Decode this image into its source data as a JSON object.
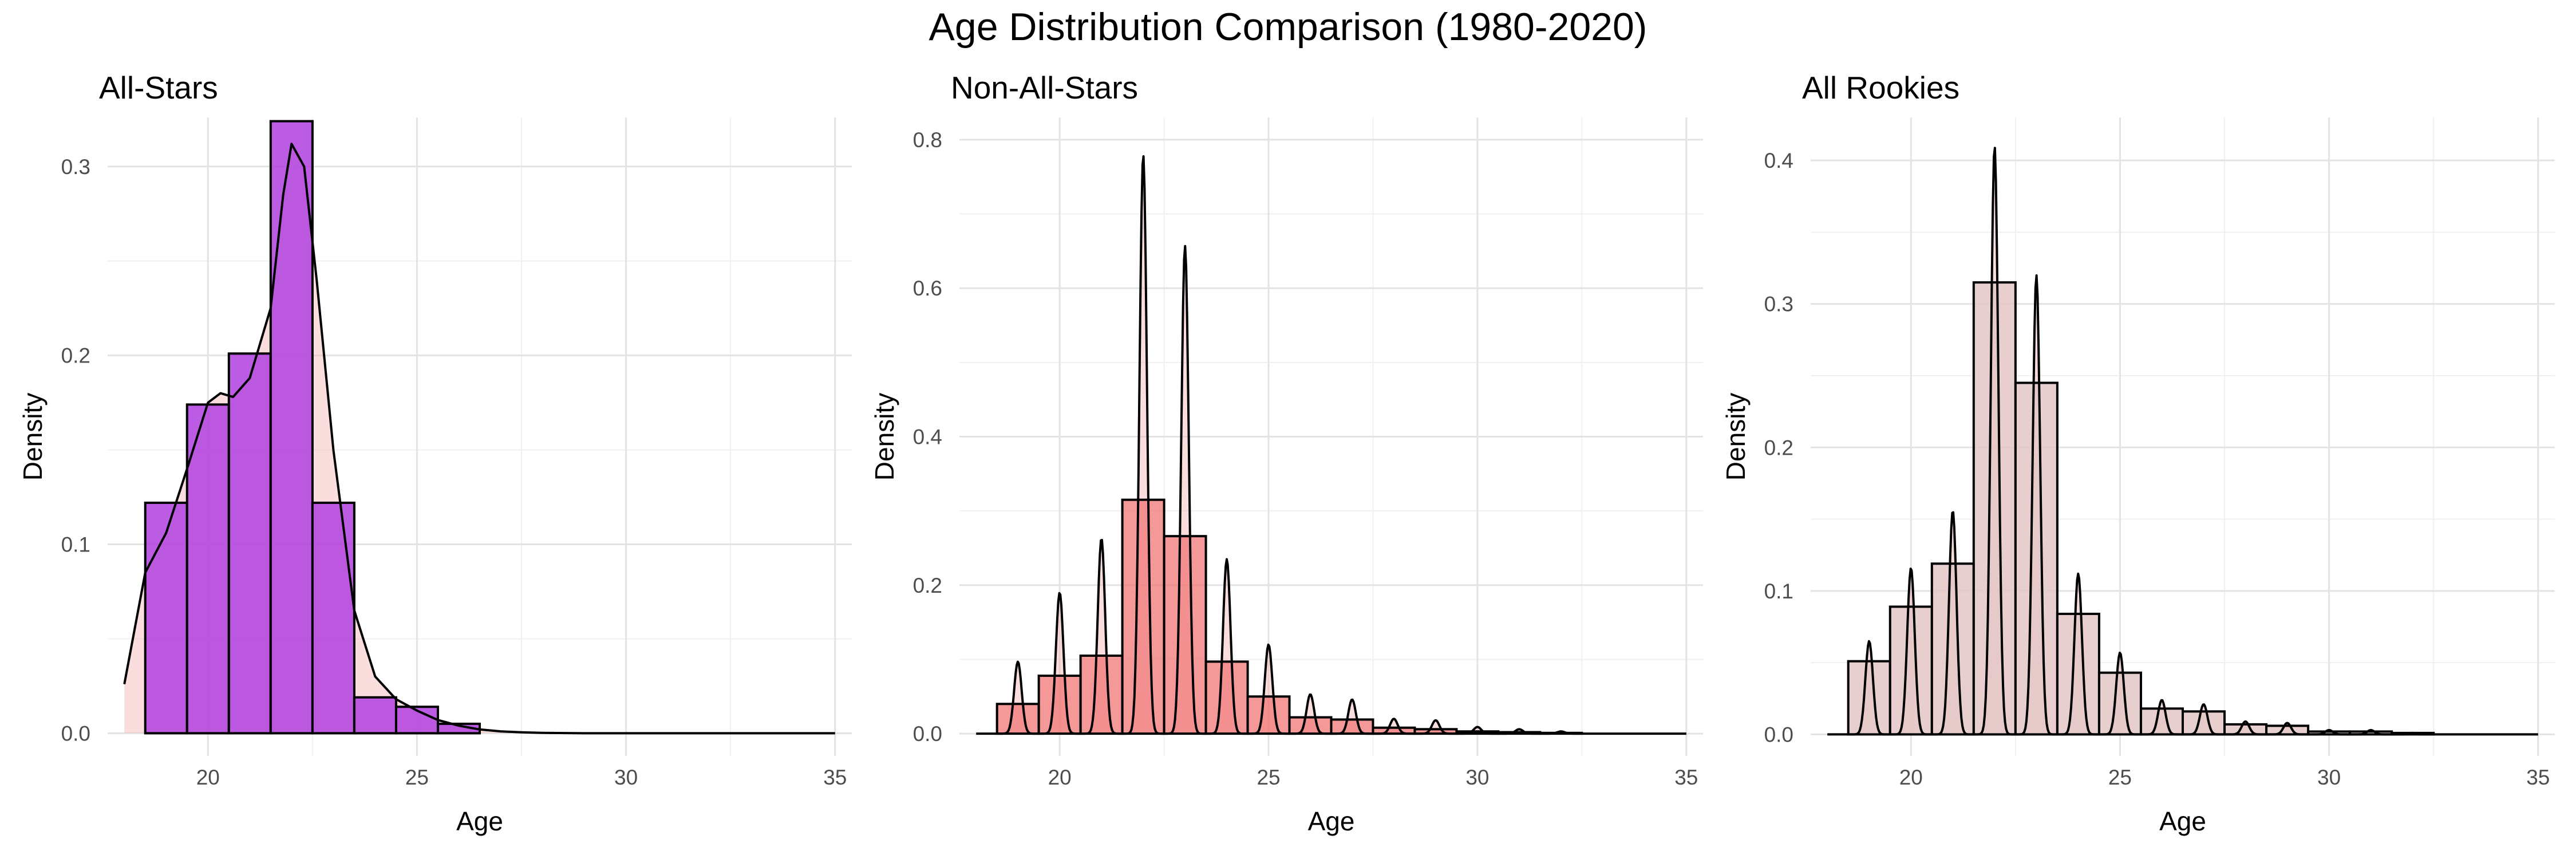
{
  "title": "Age Distribution Comparison (1980-2020)",
  "chart_data": [
    {
      "type": "bar",
      "title": "All-Stars",
      "xlabel": "Age",
      "ylabel": "Density",
      "xlim": [
        17.6,
        35.4
      ],
      "ylim": [
        -0.012,
        0.326
      ],
      "x_ticks": [
        20,
        25,
        30,
        35
      ],
      "y_ticks": [
        0.0,
        0.1,
        0.2,
        0.3
      ],
      "y_tick_labels": [
        "0.0",
        "0.1",
        "0.2",
        "0.3"
      ],
      "grid": true,
      "bar_fill": "#b040e0",
      "bar_alpha": 0.85,
      "density_fill": "#f4b6b6",
      "bins": [
        {
          "x0": 18.5,
          "x1": 19.5,
          "value": 0.122
        },
        {
          "x0": 19.5,
          "x1": 20.5,
          "value": 0.174
        },
        {
          "x0": 20.5,
          "x1": 21.5,
          "value": 0.201
        },
        {
          "x0": 21.5,
          "x1": 22.5,
          "value": 0.324
        },
        {
          "x0": 22.5,
          "x1": 23.5,
          "value": 0.122
        },
        {
          "x0": 23.5,
          "x1": 24.5,
          "value": 0.019
        },
        {
          "x0": 24.5,
          "x1": 25.5,
          "value": 0.014
        },
        {
          "x0": 25.5,
          "x1": 26.5,
          "value": 0.005
        }
      ],
      "density": {
        "x": [
          18.0,
          18.5,
          19.0,
          19.5,
          20.0,
          20.3,
          20.6,
          21.0,
          21.5,
          21.8,
          22.0,
          22.3,
          22.6,
          23.0,
          23.5,
          24.0,
          24.5,
          25.0,
          25.5,
          26.0,
          26.5,
          27.0,
          27.5,
          28.0,
          29.0,
          35.0
        ],
        "y": [
          0.026,
          0.085,
          0.106,
          0.14,
          0.175,
          0.18,
          0.178,
          0.188,
          0.225,
          0.285,
          0.312,
          0.3,
          0.24,
          0.15,
          0.065,
          0.03,
          0.018,
          0.012,
          0.007,
          0.004,
          0.002,
          0.001,
          0.0005,
          0.0002,
          0.0,
          0.0
        ]
      }
    },
    {
      "type": "bar",
      "title": "Non-All-Stars",
      "xlabel": "Age",
      "ylabel": "Density",
      "xlim": [
        17.6,
        35.4
      ],
      "ylim": [
        -0.03,
        0.83
      ],
      "x_ticks": [
        20,
        25,
        30,
        35
      ],
      "y_ticks": [
        0.0,
        0.2,
        0.4,
        0.6,
        0.8
      ],
      "y_tick_labels": [
        "0.0",
        "0.2",
        "0.4",
        "0.6",
        "0.8"
      ],
      "grid": true,
      "bar_fill": "#f07070",
      "bar_alpha": 0.72,
      "density_fill": "#f4b6b6",
      "bins": [
        {
          "x0": 18.5,
          "x1": 19.5,
          "value": 0.04
        },
        {
          "x0": 19.5,
          "x1": 20.5,
          "value": 0.078
        },
        {
          "x0": 20.5,
          "x1": 21.5,
          "value": 0.105
        },
        {
          "x0": 21.5,
          "x1": 22.5,
          "value": 0.315
        },
        {
          "x0": 22.5,
          "x1": 23.5,
          "value": 0.266
        },
        {
          "x0": 23.5,
          "x1": 24.5,
          "value": 0.097
        },
        {
          "x0": 24.5,
          "x1": 25.5,
          "value": 0.05
        },
        {
          "x0": 25.5,
          "x1": 26.5,
          "value": 0.022
        },
        {
          "x0": 26.5,
          "x1": 27.5,
          "value": 0.019
        },
        {
          "x0": 27.5,
          "x1": 28.5,
          "value": 0.008
        },
        {
          "x0": 28.5,
          "x1": 29.5,
          "value": 0.006
        },
        {
          "x0": 29.5,
          "x1": 30.5,
          "value": 0.003
        },
        {
          "x0": 30.5,
          "x1": 31.5,
          "value": 0.002
        },
        {
          "x0": 31.5,
          "x1": 32.5,
          "value": 0.001
        }
      ],
      "density_peaks": [
        {
          "x": 19,
          "y": 0.097
        },
        {
          "x": 20,
          "y": 0.19
        },
        {
          "x": 21,
          "y": 0.263
        },
        {
          "x": 22,
          "y": 0.78
        },
        {
          "x": 23,
          "y": 0.657
        },
        {
          "x": 24,
          "y": 0.235
        },
        {
          "x": 25,
          "y": 0.12
        },
        {
          "x": 26,
          "y": 0.053
        },
        {
          "x": 27,
          "y": 0.046
        },
        {
          "x": 28,
          "y": 0.02
        },
        {
          "x": 29,
          "y": 0.018
        },
        {
          "x": 30,
          "y": 0.009
        },
        {
          "x": 31,
          "y": 0.006
        },
        {
          "x": 32,
          "y": 0.003
        }
      ],
      "density_range": [
        18.0,
        35.0
      ]
    },
    {
      "type": "bar",
      "title": "All Rookies",
      "xlabel": "Age",
      "ylabel": "Density",
      "xlim": [
        17.6,
        35.4
      ],
      "ylim": [
        -0.015,
        0.43
      ],
      "x_ticks": [
        20,
        25,
        30,
        35
      ],
      "y_ticks": [
        0.0,
        0.1,
        0.2,
        0.3,
        0.4
      ],
      "y_tick_labels": [
        "0.0",
        "0.1",
        "0.2",
        "0.3",
        "0.4"
      ],
      "grid": true,
      "bar_fill": "#e3c7c7",
      "bar_alpha": 0.85,
      "density_fill": "#e8b4b4",
      "bins": [
        {
          "x0": 18.5,
          "x1": 19.5,
          "value": 0.051
        },
        {
          "x0": 19.5,
          "x1": 20.5,
          "value": 0.089
        },
        {
          "x0": 20.5,
          "x1": 21.5,
          "value": 0.119
        },
        {
          "x0": 21.5,
          "x1": 22.5,
          "value": 0.315
        },
        {
          "x0": 22.5,
          "x1": 23.5,
          "value": 0.245
        },
        {
          "x0": 23.5,
          "x1": 24.5,
          "value": 0.084
        },
        {
          "x0": 24.5,
          "x1": 25.5,
          "value": 0.043
        },
        {
          "x0": 25.5,
          "x1": 26.5,
          "value": 0.018
        },
        {
          "x0": 26.5,
          "x1": 27.5,
          "value": 0.016
        },
        {
          "x0": 27.5,
          "x1": 28.5,
          "value": 0.007
        },
        {
          "x0": 28.5,
          "x1": 29.5,
          "value": 0.006
        },
        {
          "x0": 29.5,
          "x1": 30.5,
          "value": 0.002
        },
        {
          "x0": 30.5,
          "x1": 31.5,
          "value": 0.002
        },
        {
          "x0": 31.5,
          "x1": 32.5,
          "value": 0.001
        }
      ],
      "density_peaks": [
        {
          "x": 19,
          "y": 0.065
        },
        {
          "x": 20,
          "y": 0.116
        },
        {
          "x": 21,
          "y": 0.156
        },
        {
          "x": 22,
          "y": 0.41
        },
        {
          "x": 23,
          "y": 0.32
        },
        {
          "x": 24,
          "y": 0.112
        },
        {
          "x": 25,
          "y": 0.057
        },
        {
          "x": 26,
          "y": 0.024
        },
        {
          "x": 27,
          "y": 0.021
        },
        {
          "x": 28,
          "y": 0.009
        },
        {
          "x": 29,
          "y": 0.008
        },
        {
          "x": 30,
          "y": 0.003
        },
        {
          "x": 31,
          "y": 0.003
        },
        {
          "x": 32,
          "y": 0.001
        }
      ],
      "density_range": [
        18.0,
        35.0
      ]
    }
  ]
}
